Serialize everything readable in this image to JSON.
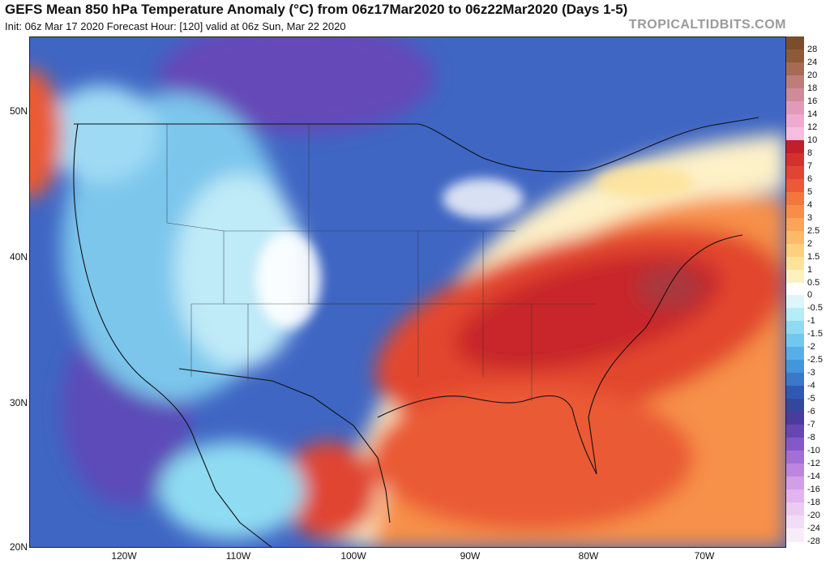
{
  "header": {
    "title": "GEFS Mean 850 hPa Temperature Anomaly (°C) from 06z17Mar2020 to 06z22Mar2020 (Days 1-5)",
    "subtitle": "Init: 06z Mar 17 2020   Forecast Hour: [120]   valid at 06z Sun, Mar 22 2020",
    "brand": "TROPICALTIDBITS.COM"
  },
  "axes": {
    "lat_labels": [
      "50N",
      "40N",
      "30N",
      "20N"
    ],
    "lon_labels": [
      "120W",
      "110W",
      "100W",
      "90W",
      "80W",
      "70W"
    ]
  },
  "legend": {
    "ticks": [
      "28",
      "24",
      "20",
      "18",
      "16",
      "14",
      "12",
      "10",
      "8",
      "7",
      "6",
      "5",
      "4",
      "3",
      "2.5",
      "2",
      "1.5",
      "1",
      "0.5",
      "0",
      "-0.5",
      "-1",
      "-1.5",
      "-2",
      "-2.5",
      "-3",
      "-4",
      "-5",
      "-6",
      "-7",
      "-8",
      "-10",
      "-12",
      "-14",
      "-16",
      "-18",
      "-20",
      "-24",
      "-28"
    ],
    "colors": [
      "#7a4e2d",
      "#8e5a3a",
      "#a86a55",
      "#c07c78",
      "#d18a98",
      "#e39ab8",
      "#f0a9d0",
      "#f6bde0",
      "#c11f2a",
      "#d2312e",
      "#e04432",
      "#ea5a36",
      "#f2763e",
      "#f78d47",
      "#fba356",
      "#fcba68",
      "#fdd07d",
      "#fde39a",
      "#fdf1c2",
      "#ffffff",
      "#ddf5fb",
      "#b4ecf7",
      "#8fdbf2",
      "#71c8ee",
      "#56afe6",
      "#4296dc",
      "#3a78cc",
      "#3158b4",
      "#34479e",
      "#4a3c9c",
      "#6746b4",
      "#8458c9",
      "#a36fd6",
      "#bc86de",
      "#d29ee6",
      "#e2b4ee",
      "#eccaf2",
      "#f2dcf6",
      "#f8ecfa"
    ]
  },
  "map_colors": {
    "background_cold": "#3e63bf",
    "warm_core": "#c52a2f",
    "purple": "#6a4fc0"
  }
}
